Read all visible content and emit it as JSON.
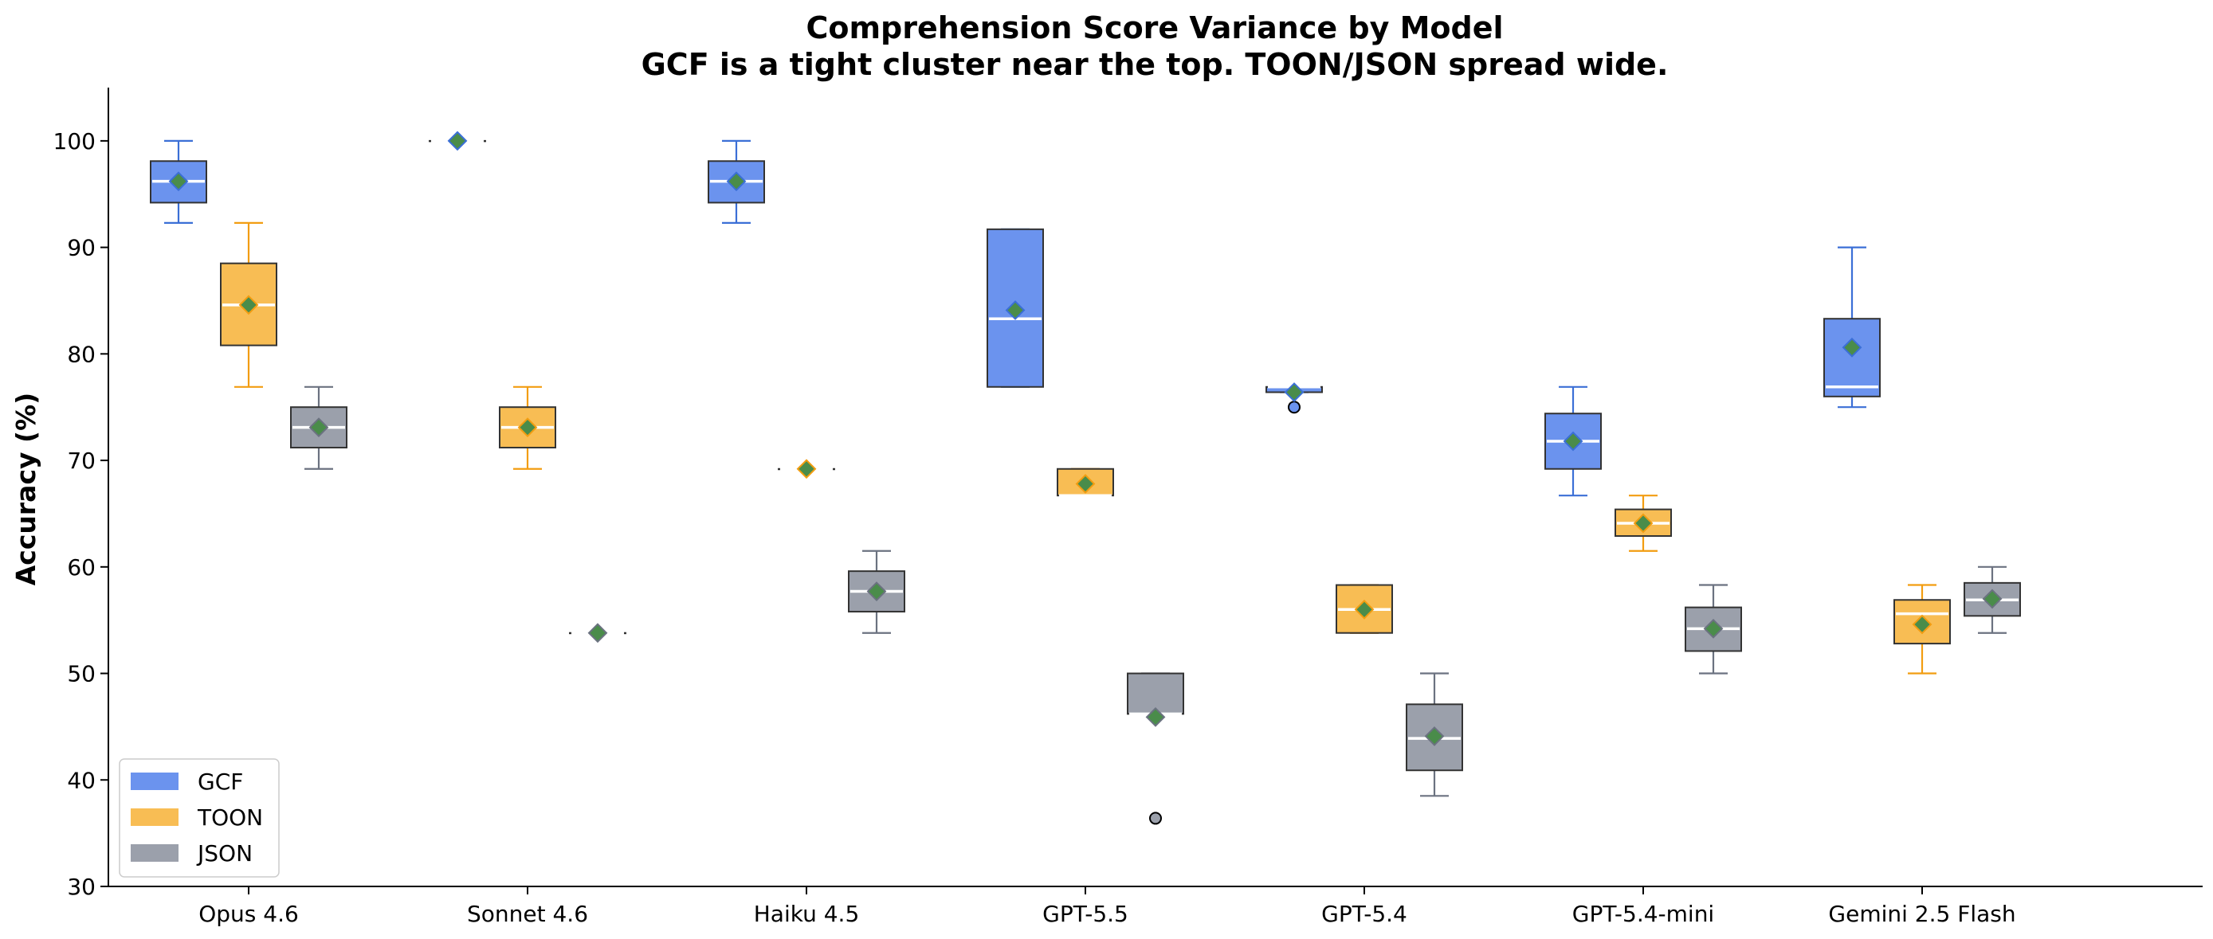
{
  "chart_data": {
    "type": "box",
    "title": "Comprehension Score Variance by Model",
    "subtitle": "GCF is a tight cluster near the top. TOON/JSON spread wide.",
    "xlabel": "",
    "ylabel": "Accuracy (%)",
    "ylim": [
      30,
      105
    ],
    "yticks": [
      30,
      40,
      50,
      60,
      70,
      80,
      90,
      100
    ],
    "grid": false,
    "legend_position": "lower-left",
    "categories": [
      "Opus 4.6",
      "Sonnet 4.6",
      "Haiku 4.5",
      "GPT-5.5",
      "GPT-5.4",
      "GPT-5.4-mini",
      "Gemini 2.5 Flash"
    ],
    "series": [
      {
        "name": "GCF",
        "color": "#6b93ee",
        "edge_color": "#3b6fd6",
        "boxes": [
          {
            "whislo": 92.3,
            "q1": 94.2,
            "med": 96.2,
            "q3": 98.1,
            "whishi": 100,
            "mean": 96.2,
            "fliers": []
          },
          {
            "whislo": 100,
            "q1": 100,
            "med": 100,
            "q3": 100,
            "whishi": 100,
            "mean": 100,
            "fliers": []
          },
          {
            "whislo": 92.3,
            "q1": 94.2,
            "med": 96.2,
            "q3": 98.1,
            "whishi": 100,
            "mean": 96.2,
            "fliers": []
          },
          {
            "whislo": 76.9,
            "q1": 76.9,
            "med": 83.3,
            "q3": 91.7,
            "whishi": 91.7,
            "mean": 84.1,
            "fliers": []
          },
          {
            "whislo": 76.4,
            "q1": 76.4,
            "med": 76.9,
            "q3": 76.9,
            "whishi": 76.9,
            "mean": 76.4,
            "fliers": [
              75.0
            ]
          },
          {
            "whislo": 66.7,
            "q1": 69.2,
            "med": 71.8,
            "q3": 74.4,
            "whishi": 76.9,
            "mean": 71.8,
            "fliers": []
          },
          {
            "whislo": 75.0,
            "q1": 76.0,
            "med": 76.9,
            "q3": 83.3,
            "whishi": 90.0,
            "mean": 80.6,
            "fliers": []
          }
        ]
      },
      {
        "name": "TOON",
        "color": "#f8bd54",
        "edge_color": "#f29d11",
        "boxes": [
          {
            "whislo": 76.9,
            "q1": 80.8,
            "med": 84.6,
            "q3": 88.5,
            "whishi": 92.3,
            "mean": 84.6,
            "fliers": []
          },
          {
            "whislo": 69.2,
            "q1": 71.2,
            "med": 73.1,
            "q3": 75.0,
            "whishi": 76.9,
            "mean": 73.1,
            "fliers": []
          },
          {
            "whislo": 69.2,
            "q1": 69.2,
            "med": 69.2,
            "q3": 69.2,
            "whishi": 69.2,
            "mean": 69.2,
            "fliers": []
          },
          {
            "whislo": 66.7,
            "q1": 66.7,
            "med": 66.7,
            "q3": 69.2,
            "whishi": 69.2,
            "mean": 67.8,
            "fliers": []
          },
          {
            "whislo": 53.8,
            "q1": 53.8,
            "med": 56.0,
            "q3": 58.3,
            "whishi": 58.3,
            "mean": 56.0,
            "fliers": []
          },
          {
            "whislo": 61.5,
            "q1": 62.9,
            "med": 64.1,
            "q3": 65.4,
            "whishi": 66.7,
            "mean": 64.1,
            "fliers": []
          },
          {
            "whislo": 50.0,
            "q1": 52.8,
            "med": 55.6,
            "q3": 56.9,
            "whishi": 58.3,
            "mean": 54.6,
            "fliers": []
          }
        ]
      },
      {
        "name": "JSON",
        "color": "#9ba0ab",
        "edge_color": "#6b7280",
        "boxes": [
          {
            "whislo": 69.2,
            "q1": 71.2,
            "med": 73.1,
            "q3": 75.0,
            "whishi": 76.9,
            "mean": 73.1,
            "fliers": []
          },
          {
            "whislo": 53.8,
            "q1": 53.8,
            "med": 53.8,
            "q3": 53.8,
            "whishi": 53.8,
            "mean": 53.8,
            "fliers": []
          },
          {
            "whislo": 53.8,
            "q1": 55.8,
            "med": 57.7,
            "q3": 59.6,
            "whishi": 61.5,
            "mean": 57.7,
            "fliers": []
          },
          {
            "whislo": 46.2,
            "q1": 46.2,
            "med": 46.2,
            "q3": 50.0,
            "whishi": 50.0,
            "mean": 45.9,
            "fliers": [
              36.4
            ]
          },
          {
            "whislo": 38.5,
            "q1": 40.9,
            "med": 43.9,
            "q3": 47.1,
            "whishi": 50.0,
            "mean": 44.1,
            "fliers": []
          },
          {
            "whislo": 50.0,
            "q1": 52.1,
            "med": 54.2,
            "q3": 56.2,
            "whishi": 58.3,
            "mean": 54.2,
            "fliers": []
          },
          {
            "whislo": 53.8,
            "q1": 55.4,
            "med": 56.9,
            "q3": 58.5,
            "whishi": 60.0,
            "mean": 57.0,
            "fliers": []
          }
        ]
      }
    ],
    "median_color": "#ffffff",
    "mean_marker": {
      "shape": "diamond",
      "fill": "#4a8c4a"
    }
  }
}
